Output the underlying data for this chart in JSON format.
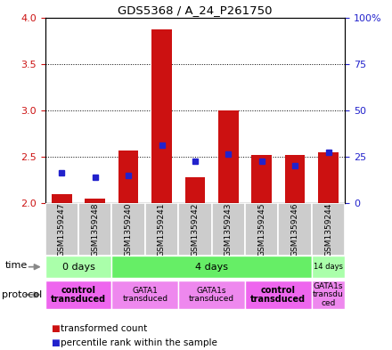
{
  "title": "GDS5368 / A_24_P261750",
  "samples": [
    "GSM1359247",
    "GSM1359248",
    "GSM1359240",
    "GSM1359241",
    "GSM1359242",
    "GSM1359243",
    "GSM1359245",
    "GSM1359246",
    "GSM1359244"
  ],
  "bar_values": [
    2.1,
    2.05,
    2.57,
    3.87,
    2.28,
    3.0,
    2.52,
    2.52,
    2.55
  ],
  "bar_base": 2.0,
  "blue_values": [
    2.33,
    2.28,
    2.3,
    2.62,
    2.45,
    2.53,
    2.45,
    2.4,
    2.55
  ],
  "ylim_left": [
    2.0,
    4.0
  ],
  "ylim_right": [
    0,
    100
  ],
  "yticks_left": [
    2.0,
    2.5,
    3.0,
    3.5,
    4.0
  ],
  "yticks_right": [
    0,
    25,
    50,
    75,
    100
  ],
  "bar_color": "#cc1111",
  "blue_color": "#2222cc",
  "time_groups": [
    {
      "label": "0 days",
      "start": 0,
      "end": 2,
      "color": "#aaffaa"
    },
    {
      "label": "4 days",
      "start": 2,
      "end": 8,
      "color": "#66ee66"
    },
    {
      "label": "14 days",
      "start": 8,
      "end": 9,
      "color": "#aaffaa"
    }
  ],
  "protocol_groups": [
    {
      "label": "control\ntransduced",
      "start": 0,
      "end": 2,
      "color": "#ee66ee",
      "bold": true
    },
    {
      "label": "GATA1\ntransduced",
      "start": 2,
      "end": 4,
      "color": "#ee88ee",
      "bold": false
    },
    {
      "label": "GATA1s\ntransduced",
      "start": 4,
      "end": 6,
      "color": "#ee88ee",
      "bold": false
    },
    {
      "label": "control\ntransduced",
      "start": 6,
      "end": 8,
      "color": "#ee66ee",
      "bold": true
    },
    {
      "label": "GATA1s\ntransdu\nced",
      "start": 8,
      "end": 9,
      "color": "#ee88ee",
      "bold": false
    }
  ],
  "legend_items": [
    {
      "color": "#cc1111",
      "label": "transformed count"
    },
    {
      "color": "#2222cc",
      "label": "percentile rank within the sample"
    }
  ],
  "sample_bg": "#cccccc",
  "plot_bg": "#ffffff"
}
